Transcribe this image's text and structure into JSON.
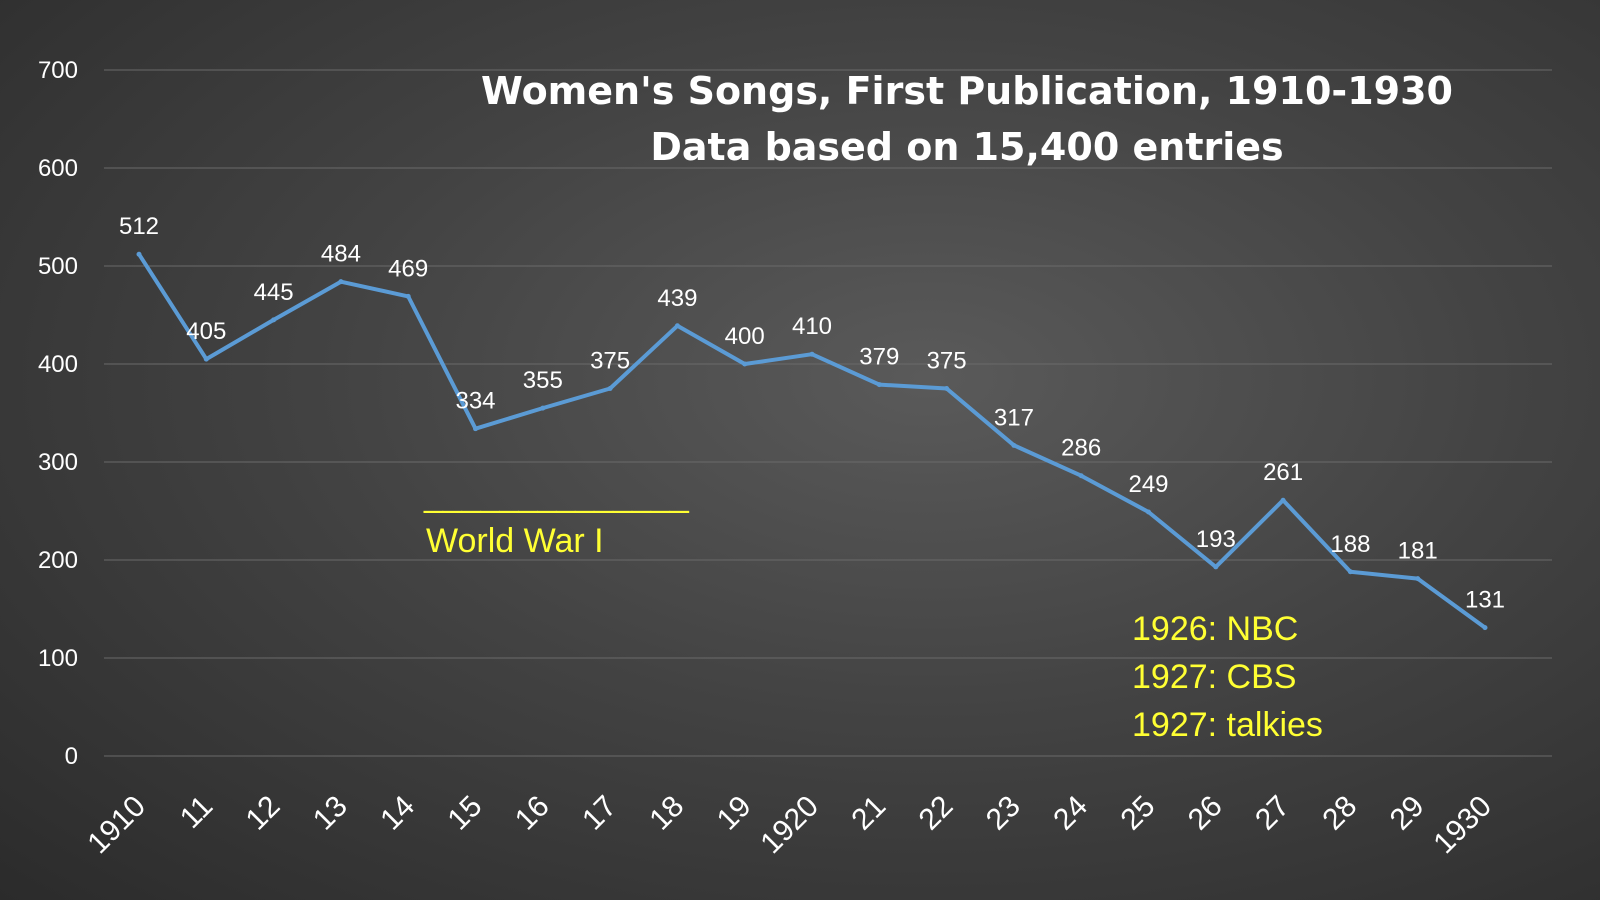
{
  "chart_data": {
    "type": "line",
    "title": "Women's Songs, First Publication, 1910-1930",
    "subtitle": "Data based on 15,400 entries",
    "xlabel": "",
    "ylabel": "",
    "ylim": [
      0,
      700
    ],
    "yticks": [
      "0",
      "100",
      "200",
      "300",
      "400",
      "500",
      "600",
      "700"
    ],
    "grid": true,
    "legend": "none",
    "categories": [
      "1910",
      "11",
      "12",
      "13",
      "14",
      "15",
      "16",
      "17",
      "18",
      "19",
      "1920",
      "21",
      "22",
      "23",
      "24",
      "25",
      "26",
      "27",
      "28",
      "29",
      "1930"
    ],
    "series": [
      {
        "values": [
          512,
          405,
          445,
          484,
          469,
          334,
          355,
          375,
          439,
          400,
          410,
          379,
          375,
          317,
          286,
          249,
          193,
          261,
          188,
          181,
          131
        ],
        "color": "#5b9bd5"
      }
    ],
    "annotations": {
      "war": "World War I",
      "war_underline": "______________",
      "media": [
        "1926: NBC",
        "1927: CBS",
        "1927: talkies"
      ],
      "color": "#ffff33"
    }
  }
}
